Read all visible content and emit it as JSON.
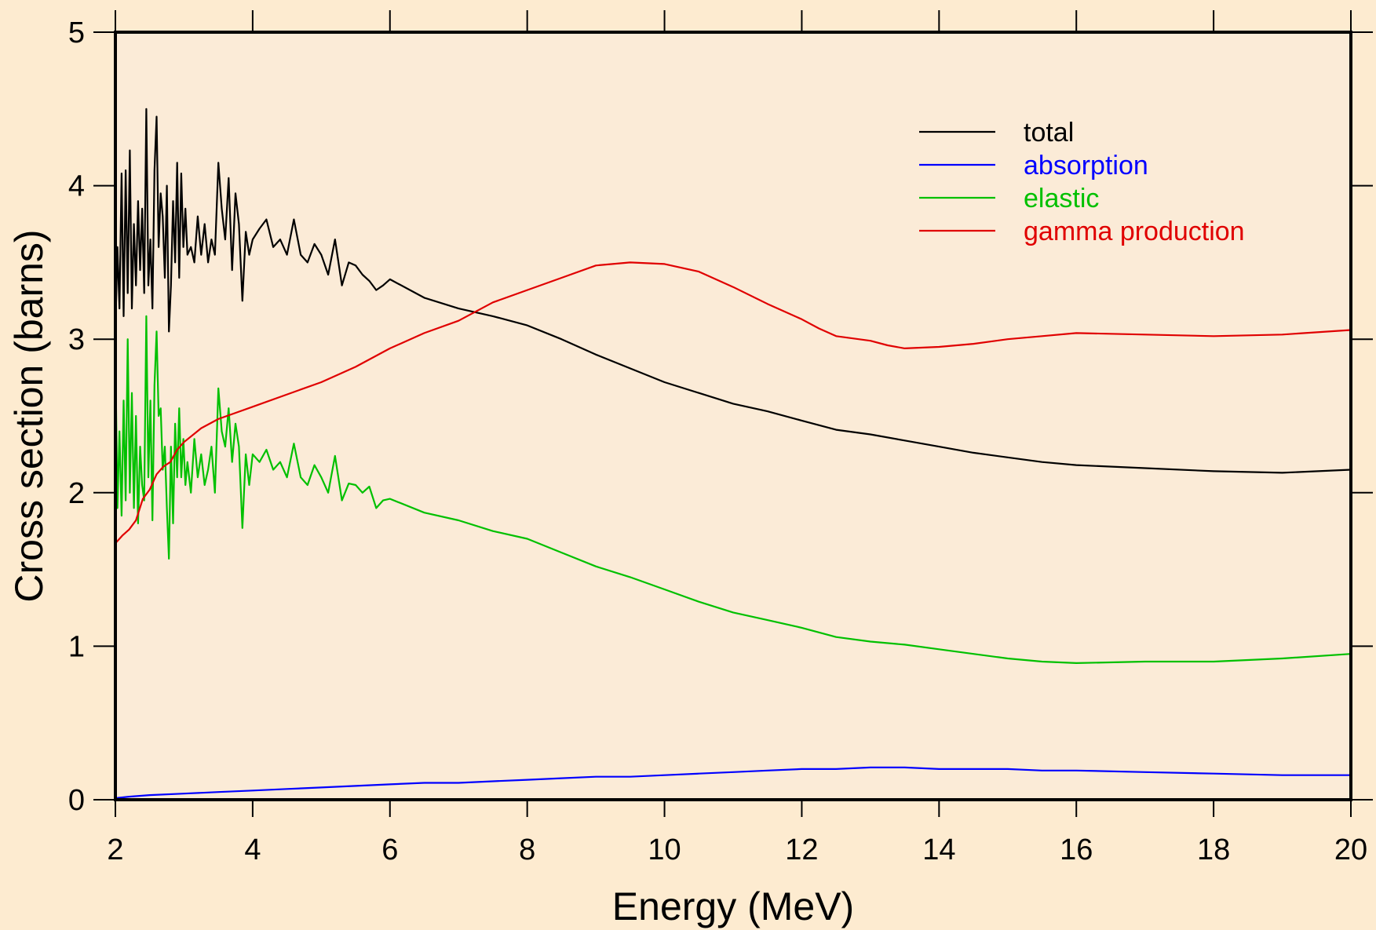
{
  "chart_data": {
    "type": "line",
    "title": "",
    "xlabel": "Energy (MeV)",
    "ylabel": "Cross section (barns)",
    "xlim": [
      2,
      20
    ],
    "ylim": [
      0,
      5
    ],
    "xticks": [
      2,
      4,
      6,
      8,
      10,
      12,
      14,
      16,
      18,
      20
    ],
    "yticks": [
      0,
      1,
      2,
      3,
      4,
      5
    ],
    "grid": false,
    "legend_position": "top-right",
    "plot_background": "#fbebd7",
    "page_background": "#fdebd0",
    "series": [
      {
        "name": "total",
        "color": "#000000",
        "x": [
          2.0,
          2.03,
          2.06,
          2.09,
          2.12,
          2.15,
          2.18,
          2.21,
          2.24,
          2.27,
          2.3,
          2.33,
          2.36,
          2.39,
          2.42,
          2.45,
          2.48,
          2.51,
          2.54,
          2.57,
          2.6,
          2.63,
          2.66,
          2.69,
          2.72,
          2.75,
          2.78,
          2.81,
          2.84,
          2.87,
          2.9,
          2.93,
          2.96,
          2.99,
          3.02,
          3.05,
          3.1,
          3.15,
          3.2,
          3.25,
          3.3,
          3.35,
          3.4,
          3.45,
          3.5,
          3.55,
          3.6,
          3.65,
          3.7,
          3.75,
          3.8,
          3.85,
          3.9,
          3.95,
          4.0,
          4.1,
          4.2,
          4.3,
          4.4,
          4.5,
          4.6,
          4.7,
          4.8,
          4.9,
          5.0,
          5.1,
          5.2,
          5.3,
          5.4,
          5.5,
          5.6,
          5.7,
          5.8,
          5.9,
          6.0,
          6.5,
          7.0,
          7.5,
          8.0,
          8.5,
          9.0,
          9.5,
          10.0,
          10.5,
          11.0,
          11.5,
          12.0,
          12.5,
          13.0,
          13.5,
          14.0,
          14.5,
          15.0,
          15.5,
          16.0,
          17.0,
          18.0,
          19.0,
          20.0
        ],
        "values": [
          3.05,
          3.6,
          3.2,
          4.08,
          3.15,
          4.1,
          3.3,
          4.23,
          3.2,
          3.75,
          3.35,
          3.9,
          3.45,
          3.85,
          3.3,
          4.5,
          3.35,
          3.65,
          3.2,
          4.1,
          4.45,
          3.6,
          3.95,
          3.8,
          3.4,
          4.0,
          3.05,
          3.35,
          3.9,
          3.5,
          4.15,
          3.4,
          4.08,
          3.6,
          3.85,
          3.55,
          3.6,
          3.5,
          3.8,
          3.55,
          3.75,
          3.5,
          3.65,
          3.55,
          4.15,
          3.85,
          3.65,
          4.05,
          3.45,
          3.95,
          3.75,
          3.25,
          3.7,
          3.55,
          3.65,
          3.72,
          3.78,
          3.6,
          3.65,
          3.55,
          3.78,
          3.55,
          3.5,
          3.62,
          3.55,
          3.42,
          3.65,
          3.35,
          3.5,
          3.48,
          3.42,
          3.38,
          3.32,
          3.35,
          3.39,
          3.27,
          3.2,
          3.15,
          3.09,
          3.0,
          2.9,
          2.81,
          2.72,
          2.65,
          2.58,
          2.53,
          2.47,
          2.41,
          2.38,
          2.34,
          2.3,
          2.26,
          2.23,
          2.2,
          2.18,
          2.16,
          2.14,
          2.13,
          2.15
        ]
      },
      {
        "name": "absorption",
        "color": "#0000ff",
        "x": [
          2.0,
          2.2,
          2.5,
          3.0,
          3.5,
          4.0,
          4.5,
          5.0,
          5.5,
          6.0,
          6.5,
          7.0,
          7.5,
          8.0,
          8.5,
          9.0,
          9.5,
          10.0,
          10.5,
          11.0,
          11.5,
          12.0,
          12.5,
          13.0,
          13.5,
          14.0,
          14.5,
          15.0,
          15.5,
          16.0,
          17.0,
          18.0,
          19.0,
          20.0
        ],
        "values": [
          0.01,
          0.02,
          0.03,
          0.04,
          0.05,
          0.06,
          0.07,
          0.08,
          0.09,
          0.1,
          0.11,
          0.11,
          0.12,
          0.13,
          0.14,
          0.15,
          0.15,
          0.16,
          0.17,
          0.18,
          0.19,
          0.2,
          0.2,
          0.21,
          0.21,
          0.2,
          0.2,
          0.2,
          0.19,
          0.19,
          0.18,
          0.17,
          0.16,
          0.16
        ]
      },
      {
        "name": "elastic",
        "color": "#00c000",
        "x": [
          2.0,
          2.03,
          2.06,
          2.09,
          2.12,
          2.15,
          2.18,
          2.21,
          2.24,
          2.27,
          2.3,
          2.33,
          2.36,
          2.39,
          2.42,
          2.45,
          2.48,
          2.51,
          2.54,
          2.57,
          2.6,
          2.63,
          2.66,
          2.69,
          2.72,
          2.75,
          2.78,
          2.81,
          2.84,
          2.87,
          2.9,
          2.93,
          2.96,
          2.99,
          3.02,
          3.05,
          3.1,
          3.15,
          3.2,
          3.25,
          3.3,
          3.35,
          3.4,
          3.45,
          3.5,
          3.55,
          3.6,
          3.65,
          3.7,
          3.75,
          3.8,
          3.85,
          3.9,
          3.95,
          4.0,
          4.1,
          4.2,
          4.3,
          4.4,
          4.5,
          4.6,
          4.7,
          4.8,
          4.9,
          5.0,
          5.1,
          5.2,
          5.3,
          5.4,
          5.5,
          5.6,
          5.7,
          5.8,
          5.9,
          6.0,
          6.5,
          7.0,
          7.5,
          8.0,
          8.5,
          9.0,
          9.5,
          10.0,
          10.5,
          11.0,
          11.5,
          12.0,
          12.5,
          13.0,
          13.5,
          14.0,
          14.5,
          15.0,
          15.5,
          16.0,
          17.0,
          18.0,
          19.0,
          20.0
        ],
        "values": [
          2.9,
          1.9,
          2.4,
          1.85,
          2.6,
          1.95,
          3.0,
          2.0,
          2.65,
          1.9,
          2.5,
          1.8,
          2.3,
          2.05,
          1.95,
          3.15,
          2.1,
          2.6,
          1.82,
          2.7,
          3.05,
          2.5,
          2.55,
          2.15,
          2.3,
          1.9,
          1.57,
          2.3,
          1.8,
          2.45,
          2.1,
          2.55,
          2.1,
          2.35,
          2.05,
          2.2,
          2.0,
          2.35,
          2.1,
          2.25,
          2.05,
          2.15,
          2.3,
          2.0,
          2.68,
          2.4,
          2.3,
          2.55,
          2.2,
          2.45,
          2.3,
          1.77,
          2.25,
          2.05,
          2.25,
          2.2,
          2.28,
          2.15,
          2.2,
          2.1,
          2.32,
          2.1,
          2.05,
          2.18,
          2.1,
          2.0,
          2.24,
          1.95,
          2.06,
          2.05,
          2.0,
          2.04,
          1.9,
          1.95,
          1.96,
          1.87,
          1.82,
          1.75,
          1.7,
          1.61,
          1.52,
          1.45,
          1.37,
          1.29,
          1.22,
          1.17,
          1.12,
          1.06,
          1.03,
          1.01,
          0.98,
          0.95,
          0.92,
          0.9,
          0.89,
          0.9,
          0.9,
          0.92,
          0.95
        ]
      },
      {
        "name": "gamma production",
        "color": "#e00000",
        "x": [
          2.0,
          2.1,
          2.2,
          2.3,
          2.4,
          2.5,
          2.6,
          2.7,
          2.8,
          2.9,
          3.0,
          3.25,
          3.5,
          3.75,
          4.0,
          4.5,
          5.0,
          5.5,
          6.0,
          6.5,
          7.0,
          7.5,
          8.0,
          8.5,
          9.0,
          9.5,
          10.0,
          10.5,
          11.0,
          11.5,
          12.0,
          12.25,
          12.5,
          13.0,
          13.25,
          13.5,
          14.0,
          14.5,
          15.0,
          15.5,
          16.0,
          17.0,
          18.0,
          19.0,
          20.0
        ],
        "values": [
          1.67,
          1.72,
          1.76,
          1.82,
          1.96,
          2.02,
          2.12,
          2.17,
          2.2,
          2.28,
          2.33,
          2.42,
          2.48,
          2.52,
          2.56,
          2.64,
          2.72,
          2.82,
          2.94,
          3.04,
          3.12,
          3.24,
          3.32,
          3.4,
          3.48,
          3.5,
          3.49,
          3.44,
          3.34,
          3.23,
          3.13,
          3.07,
          3.02,
          2.99,
          2.96,
          2.94,
          2.95,
          2.97,
          3.0,
          3.02,
          3.04,
          3.03,
          3.02,
          3.03,
          3.06
        ]
      }
    ]
  }
}
